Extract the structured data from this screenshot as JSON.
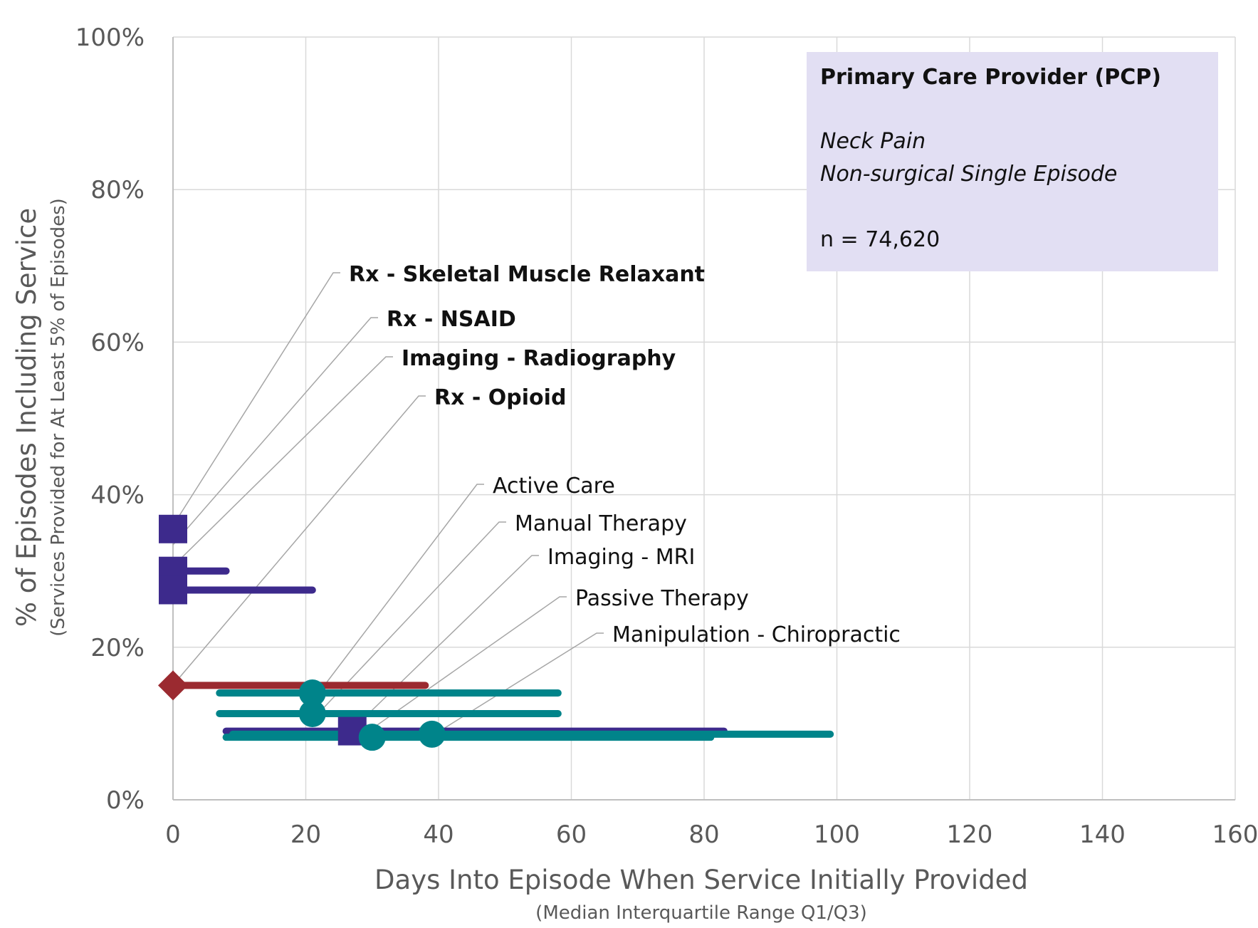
{
  "chart_data": {
    "type": "scatter",
    "xlabel": "Days Into Episode When Service Initially Provided",
    "xlabel_sub": "(Median Interquartile Range Q1/Q3)",
    "ylabel": "% of Episodes Including Service",
    "ylabel_sub": "(Services Provided for At Least 5% of Episodes)",
    "xlim": [
      0,
      160
    ],
    "ylim": [
      0,
      100
    ],
    "x_ticks": [
      0,
      20,
      40,
      60,
      80,
      100,
      120,
      140,
      160
    ],
    "y_ticks": [
      0,
      20,
      40,
      60,
      80,
      100
    ],
    "x_tick_labels": [
      "0",
      "20",
      "40",
      "60",
      "80",
      "100",
      "120",
      "140",
      "160"
    ],
    "y_tick_labels": [
      "0%",
      "20%",
      "40%",
      "60%",
      "80%",
      "100%"
    ],
    "grid": true,
    "info_box": {
      "title": "Primary Care Provider (PCP)",
      "line1": "Neck Pain",
      "line2": "Non-surgical Single Episode",
      "n": "n = 74,620"
    },
    "series": [
      {
        "name": "Rx - Skeletal Muscle Relaxant",
        "median": 0,
        "q1": 0,
        "q3": 0,
        "y": 35.5,
        "marker": "square",
        "color": "#3d2a8c",
        "bold": true
      },
      {
        "name": "Rx - NSAID",
        "median": 0,
        "q1": 0,
        "q3": 8,
        "y": 30,
        "marker": "square",
        "color": "#3d2a8c",
        "bold": true
      },
      {
        "name": "Imaging - Radiography",
        "median": 0,
        "q1": 0,
        "q3": 21,
        "y": 27.5,
        "marker": "square",
        "color": "#3d2a8c",
        "bold": true
      },
      {
        "name": "Rx - Opioid",
        "median": 0,
        "q1": 0,
        "q3": 38,
        "y": 15,
        "marker": "diamond",
        "color": "#9b2a30",
        "bold": true
      },
      {
        "name": "Active Care",
        "median": 21,
        "q1": 7,
        "q3": 58,
        "y": 14,
        "marker": "circle",
        "color": "#00848a",
        "bold": false
      },
      {
        "name": "Manual Therapy",
        "median": 21,
        "q1": 7,
        "q3": 58,
        "y": 11.3,
        "marker": "circle",
        "color": "#00848a",
        "bold": false
      },
      {
        "name": "Imaging - MRI",
        "median": 27,
        "q1": 8,
        "q3": 83,
        "y": 9,
        "marker": "square",
        "color": "#3d2a8c",
        "bold": false
      },
      {
        "name": "Passive Therapy",
        "median": 30,
        "q1": 8,
        "q3": 81,
        "y": 8.2,
        "marker": "circle",
        "color": "#00848a",
        "bold": false
      },
      {
        "name": "Manipulation - Chiropractic",
        "median": 39,
        "q1": 9,
        "q3": 99,
        "y": 8.6,
        "marker": "circle",
        "color": "#00848a",
        "bold": false
      }
    ]
  }
}
